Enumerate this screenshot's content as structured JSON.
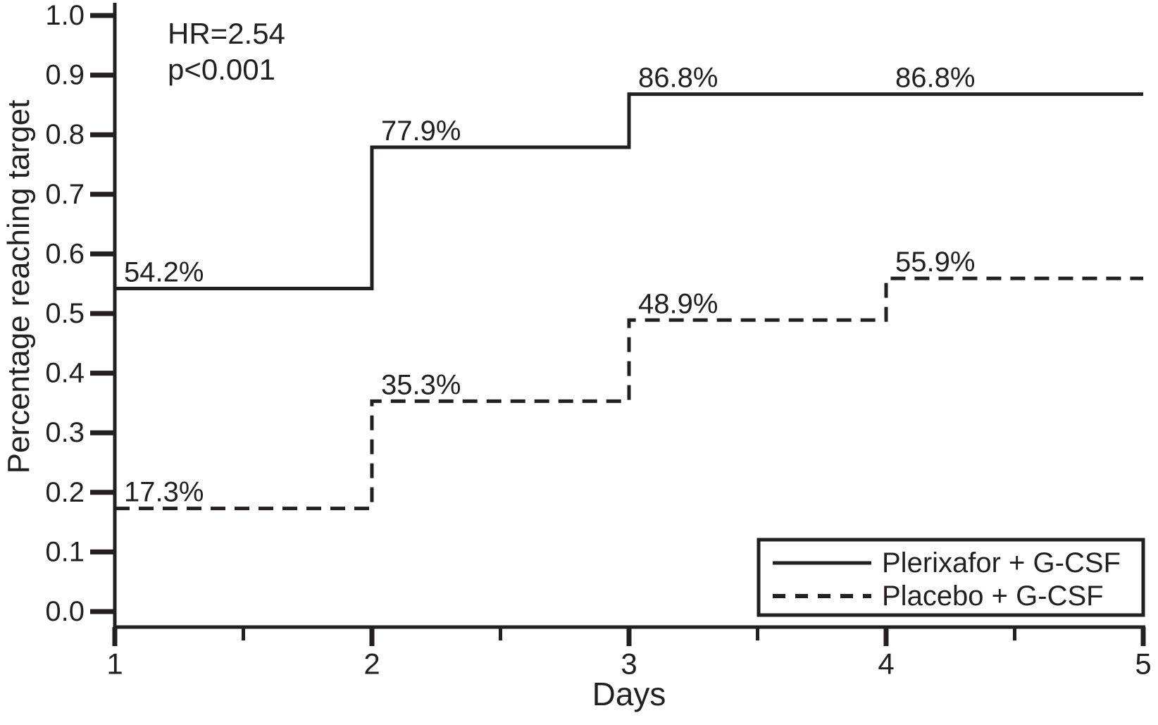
{
  "colors": {
    "ink": "#231f20",
    "background": "#ffffff"
  },
  "chart_data": {
    "type": "line",
    "subtype": "kaplan-meier-step",
    "title": "",
    "xlabel": "Days",
    "ylabel": "Percentage reaching target",
    "xlim": [
      1,
      5
    ],
    "ylim": [
      0.0,
      1.0
    ],
    "x_major_ticks": [
      1,
      2,
      3,
      4,
      5
    ],
    "x_minor_ticks": [
      1.5,
      2.5,
      3.5,
      4.5
    ],
    "y_ticks": [
      0.0,
      0.1,
      0.2,
      0.3,
      0.4,
      0.5,
      0.6,
      0.7,
      0.8,
      0.9,
      1.0
    ],
    "grid": false,
    "legend_position": "lower right",
    "annotation": {
      "hr": "HR=2.54",
      "p": "p<0.001"
    },
    "series": [
      {
        "name": "Plerixafor + G-CSF",
        "line_style": "solid",
        "steps": [
          {
            "x": 1,
            "y": 0.542
          },
          {
            "x": 2,
            "y": 0.779
          },
          {
            "x": 3,
            "y": 0.868
          }
        ],
        "end_x": 5,
        "labels": [
          {
            "x": 1,
            "y": 0.542,
            "text": "54.2%"
          },
          {
            "x": 2,
            "y": 0.779,
            "text": "77.9%"
          },
          {
            "x": 3,
            "y": 0.868,
            "text": "86.8%"
          },
          {
            "x": 4,
            "y": 0.868,
            "text": "86.8%"
          }
        ]
      },
      {
        "name": "Placebo + G-CSF",
        "line_style": "dashed",
        "steps": [
          {
            "x": 1,
            "y": 0.173
          },
          {
            "x": 2,
            "y": 0.353
          },
          {
            "x": 3,
            "y": 0.489
          },
          {
            "x": 4,
            "y": 0.559
          }
        ],
        "end_x": 5,
        "labels": [
          {
            "x": 1,
            "y": 0.173,
            "text": "17.3%"
          },
          {
            "x": 2,
            "y": 0.353,
            "text": "35.3%"
          },
          {
            "x": 3,
            "y": 0.489,
            "text": "48.9%"
          },
          {
            "x": 4,
            "y": 0.559,
            "text": "55.9%"
          }
        ]
      }
    ]
  }
}
